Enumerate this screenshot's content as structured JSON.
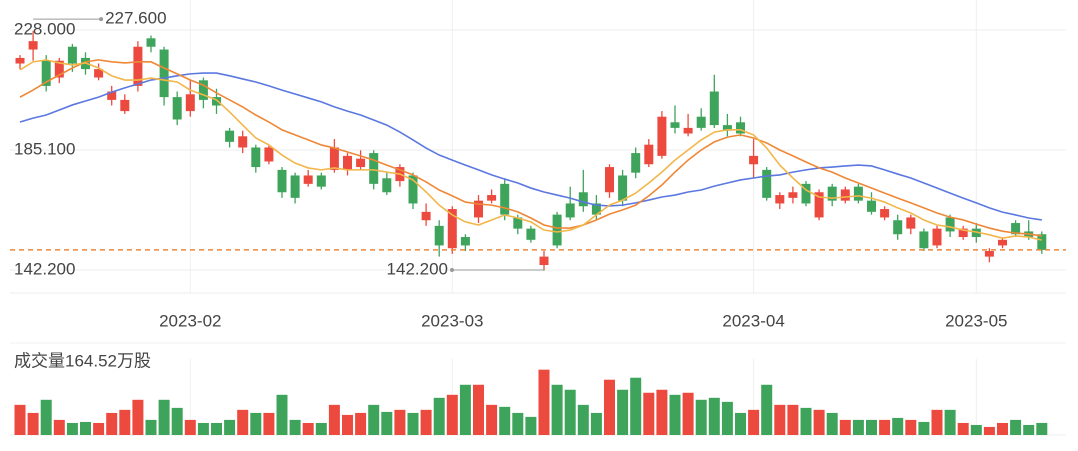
{
  "chart_data": {
    "type": "candlestick",
    "up_color": "#ec4a3f",
    "down_color": "#3fa45b",
    "ylim": [
      134,
      238.7
    ],
    "yticks": [
      {
        "value": 142.2,
        "label": "142.200"
      },
      {
        "value": 185.1,
        "label": "185.100"
      },
      {
        "value": 228.0,
        "label": "228.000"
      }
    ],
    "xticks": [
      {
        "value": 13,
        "label": "2023-02"
      },
      {
        "value": 33,
        "label": "2023-03"
      },
      {
        "value": 56,
        "label": "2023-04"
      },
      {
        "value": 73,
        "label": "2023-05"
      }
    ],
    "open": [
      216,
      221,
      217,
      211,
      222,
      218,
      211,
      203,
      199,
      208,
      225,
      221,
      204,
      199,
      210,
      204,
      192,
      186,
      186,
      181,
      178,
      176,
      173,
      176,
      178,
      178,
      179,
      184,
      175,
      174,
      176,
      160,
      158,
      150,
      154,
      161,
      167,
      173,
      161,
      157,
      144,
      162,
      166,
      170,
      166,
      170,
      176,
      184,
      180,
      183,
      195,
      191,
      197,
      206,
      194,
      195,
      180,
      178,
      166,
      168,
      173,
      161,
      172,
      167,
      172,
      167,
      161,
      160,
      157,
      156,
      151,
      161,
      154,
      157,
      147,
      151,
      159,
      156,
      155
    ],
    "high": [
      219,
      227.6,
      219,
      218,
      223,
      220,
      216,
      208,
      205,
      224,
      226,
      222,
      206,
      210,
      211,
      207,
      193,
      192,
      187,
      187,
      179,
      177,
      178,
      177,
      189,
      184,
      185,
      185,
      177,
      180,
      177,
      166,
      160,
      165,
      155,
      169,
      171,
      175,
      162,
      158,
      149,
      163,
      172,
      178,
      169,
      180,
      178,
      186,
      189,
      199,
      201,
      198,
      200,
      212,
      198,
      197,
      189,
      179,
      170,
      172,
      174,
      171,
      173,
      172,
      173,
      170,
      165,
      162,
      162,
      157,
      158,
      162,
      158,
      159,
      150,
      154,
      160,
      160,
      156
    ],
    "low": [
      214,
      217,
      206,
      209,
      213,
      212,
      210,
      201,
      198,
      206,
      220,
      201,
      194,
      197,
      200,
      198,
      186,
      184,
      177,
      180,
      168,
      166,
      172,
      171,
      177,
      176,
      178,
      171,
      169,
      172,
      164,
      158,
      147,
      148,
      149,
      159,
      166,
      160,
      155,
      152,
      142.2,
      150,
      160,
      163,
      160,
      168,
      165,
      175,
      179,
      182,
      191,
      190,
      192,
      193,
      190,
      190,
      175,
      167,
      164,
      166,
      165,
      160,
      165,
      166,
      166,
      162,
      160,
      153,
      155,
      149,
      150,
      154,
      153,
      152,
      145,
      150,
      154,
      153,
      148
    ],
    "close": [
      218,
      224,
      208,
      217,
      216,
      214,
      214,
      206,
      203,
      222,
      222,
      204,
      196,
      205,
      203,
      201,
      188,
      190,
      179,
      186,
      170,
      168,
      176,
      172,
      186,
      183,
      182,
      173,
      170,
      179,
      166,
      163,
      151,
      164,
      151,
      167,
      169,
      162,
      157,
      153,
      147,
      151,
      161,
      165,
      162,
      179,
      167,
      177,
      187,
      197,
      193,
      193,
      193,
      194,
      192,
      191,
      183,
      168,
      169,
      170,
      166,
      170,
      167,
      171,
      167,
      163,
      164,
      155,
      161,
      150,
      157,
      156,
      157,
      154,
      149,
      153,
      155,
      154,
      149.4
    ],
    "series": [
      {
        "color": "#5a78e0",
        "values": [
          195.1,
          196.5,
          197.6,
          199.4,
          201.2,
          202.6,
          204.0,
          205.8,
          207.3,
          208.7,
          210.1,
          210.8,
          211.6,
          212.3,
          212.6,
          212.6,
          211.6,
          210.5,
          209.4,
          208.0,
          206.5,
          205.1,
          203.7,
          202.3,
          200.5,
          199.0,
          197.6,
          195.8,
          194.0,
          191.5,
          188.7,
          185.8,
          183.3,
          181.5,
          179.7,
          178.0,
          176.2,
          174.7,
          173.3,
          171.5,
          170.1,
          169.0,
          167.9,
          166.5,
          165.4,
          165.1,
          165.4,
          166.2,
          167.2,
          168.3,
          169.0,
          170.1,
          170.8,
          172.2,
          173.3,
          174.4,
          175.1,
          175.8,
          176.2,
          177.2,
          178.0,
          178.7,
          179.0,
          179.4,
          179.7,
          179.4,
          178.0,
          176.5,
          175.1,
          173.3,
          171.5,
          169.7,
          167.9,
          166.2,
          164.4,
          162.9,
          161.9,
          160.8,
          160.1
        ]
      },
      {
        "color": "#ee8838",
        "values": [
          204.0,
          206.5,
          209.4,
          211.9,
          214.4,
          216.6,
          217.3,
          216.6,
          216.2,
          216.6,
          216.6,
          214.4,
          212.3,
          210.1,
          208.3,
          205.5,
          203.0,
          200.5,
          197.6,
          195.1,
          192.3,
          190.5,
          188.7,
          186.9,
          185.8,
          184.4,
          183.0,
          181.5,
          179.7,
          178.0,
          176.2,
          173.7,
          170.8,
          168.7,
          166.5,
          165.8,
          165.4,
          164.4,
          163.0,
          160.8,
          158.3,
          157.2,
          157.2,
          158.3,
          160.1,
          162.2,
          163.7,
          165.4,
          168.7,
          172.6,
          177.2,
          181.5,
          185.1,
          188.0,
          189.7,
          190.5,
          189.4,
          187.6,
          185.1,
          183.0,
          180.8,
          178.7,
          177.2,
          175.1,
          173.3,
          171.5,
          169.7,
          167.9,
          166.2,
          164.4,
          162.6,
          161.1,
          160.1,
          158.6,
          157.2,
          156.1,
          155.4,
          155.1,
          154.4
        ]
      },
      {
        "color": "#f2b64a",
        "values": [
          213.7,
          216.6,
          217.3,
          216.2,
          215.5,
          216.2,
          214.4,
          211.6,
          210.1,
          210.1,
          210.8,
          210.1,
          209.4,
          206.5,
          204.8,
          203.0,
          198.7,
          194.0,
          189.4,
          186.9,
          183.3,
          180.4,
          178.7,
          178.0,
          178.7,
          178.0,
          178.0,
          178.0,
          177.2,
          176.5,
          174.4,
          170.1,
          165.4,
          161.9,
          159.4,
          158.3,
          160.1,
          161.9,
          160.8,
          159.4,
          156.5,
          155.8,
          156.5,
          158.3,
          161.9,
          165.4,
          167.2,
          169.7,
          173.3,
          177.2,
          181.5,
          185.1,
          188.7,
          191.5,
          192.3,
          192.3,
          190.5,
          185.8,
          179.7,
          175.1,
          170.8,
          168.3,
          167.9,
          168.3,
          168.7,
          167.9,
          166.5,
          164.4,
          162.6,
          160.1,
          158.3,
          157.6,
          156.5,
          155.8,
          154.8,
          153.6,
          154.4,
          154.0,
          152.9
        ]
      }
    ],
    "annotations": [
      {
        "label": "227.600"
      },
      {
        "label": "142.200"
      }
    ],
    "volume": {
      "label": "成交量164.52万股",
      "ylim": [
        0,
        900
      ],
      "values": [
        411,
        301,
        480,
        206,
        164,
        178,
        164,
        301,
        343,
        480,
        206,
        480,
        370,
        206,
        164,
        164,
        206,
        343,
        301,
        301,
        548,
        206,
        164,
        164,
        411,
        274,
        301,
        411,
        315,
        343,
        301,
        343,
        507,
        548,
        685,
        685,
        411,
        384,
        301,
        247,
        891,
        685,
        617,
        411,
        301,
        754,
        617,
        781,
        576,
        617,
        548,
        576,
        480,
        507,
        452,
        301,
        343,
        685,
        411,
        411,
        370,
        343,
        301,
        206,
        206,
        206,
        206,
        233,
        206,
        178,
        343,
        343,
        164,
        137,
        110,
        164,
        206,
        137,
        164.52
      ]
    }
  }
}
